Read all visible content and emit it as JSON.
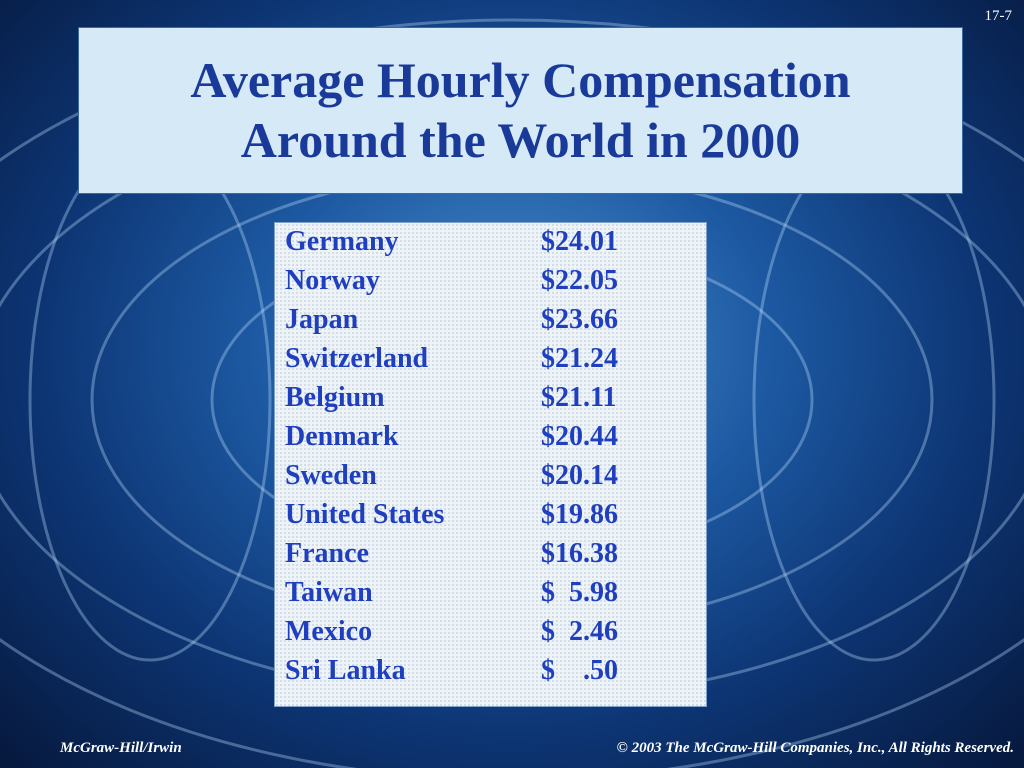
{
  "slide_number": "17-7",
  "header": {
    "title_line1": "Average Hourly Compensation",
    "title_line2": "Around the World in 2000"
  },
  "table": {
    "rows": [
      [
        "Germany",
        "$24.01"
      ],
      [
        "Norway",
        "$22.05"
      ],
      [
        "Japan",
        "$23.66"
      ],
      [
        "Switzerland",
        "$21.24"
      ],
      [
        "Belgium",
        "$21.11"
      ],
      [
        "Denmark",
        "$20.44"
      ],
      [
        "Sweden",
        "$20.14"
      ],
      [
        "United States",
        "$19.86"
      ],
      [
        "France",
        "$16.38"
      ],
      [
        "Taiwan",
        "$  5.98"
      ],
      [
        "Mexico",
        "$  2.46"
      ],
      [
        "Sri Lanka",
        "$    .50"
      ]
    ]
  },
  "footer": {
    "left": "McGraw-Hill/Irwin",
    "right": "© 2003  The McGraw-Hill Companies, Inc., All Rights Reserved."
  }
}
